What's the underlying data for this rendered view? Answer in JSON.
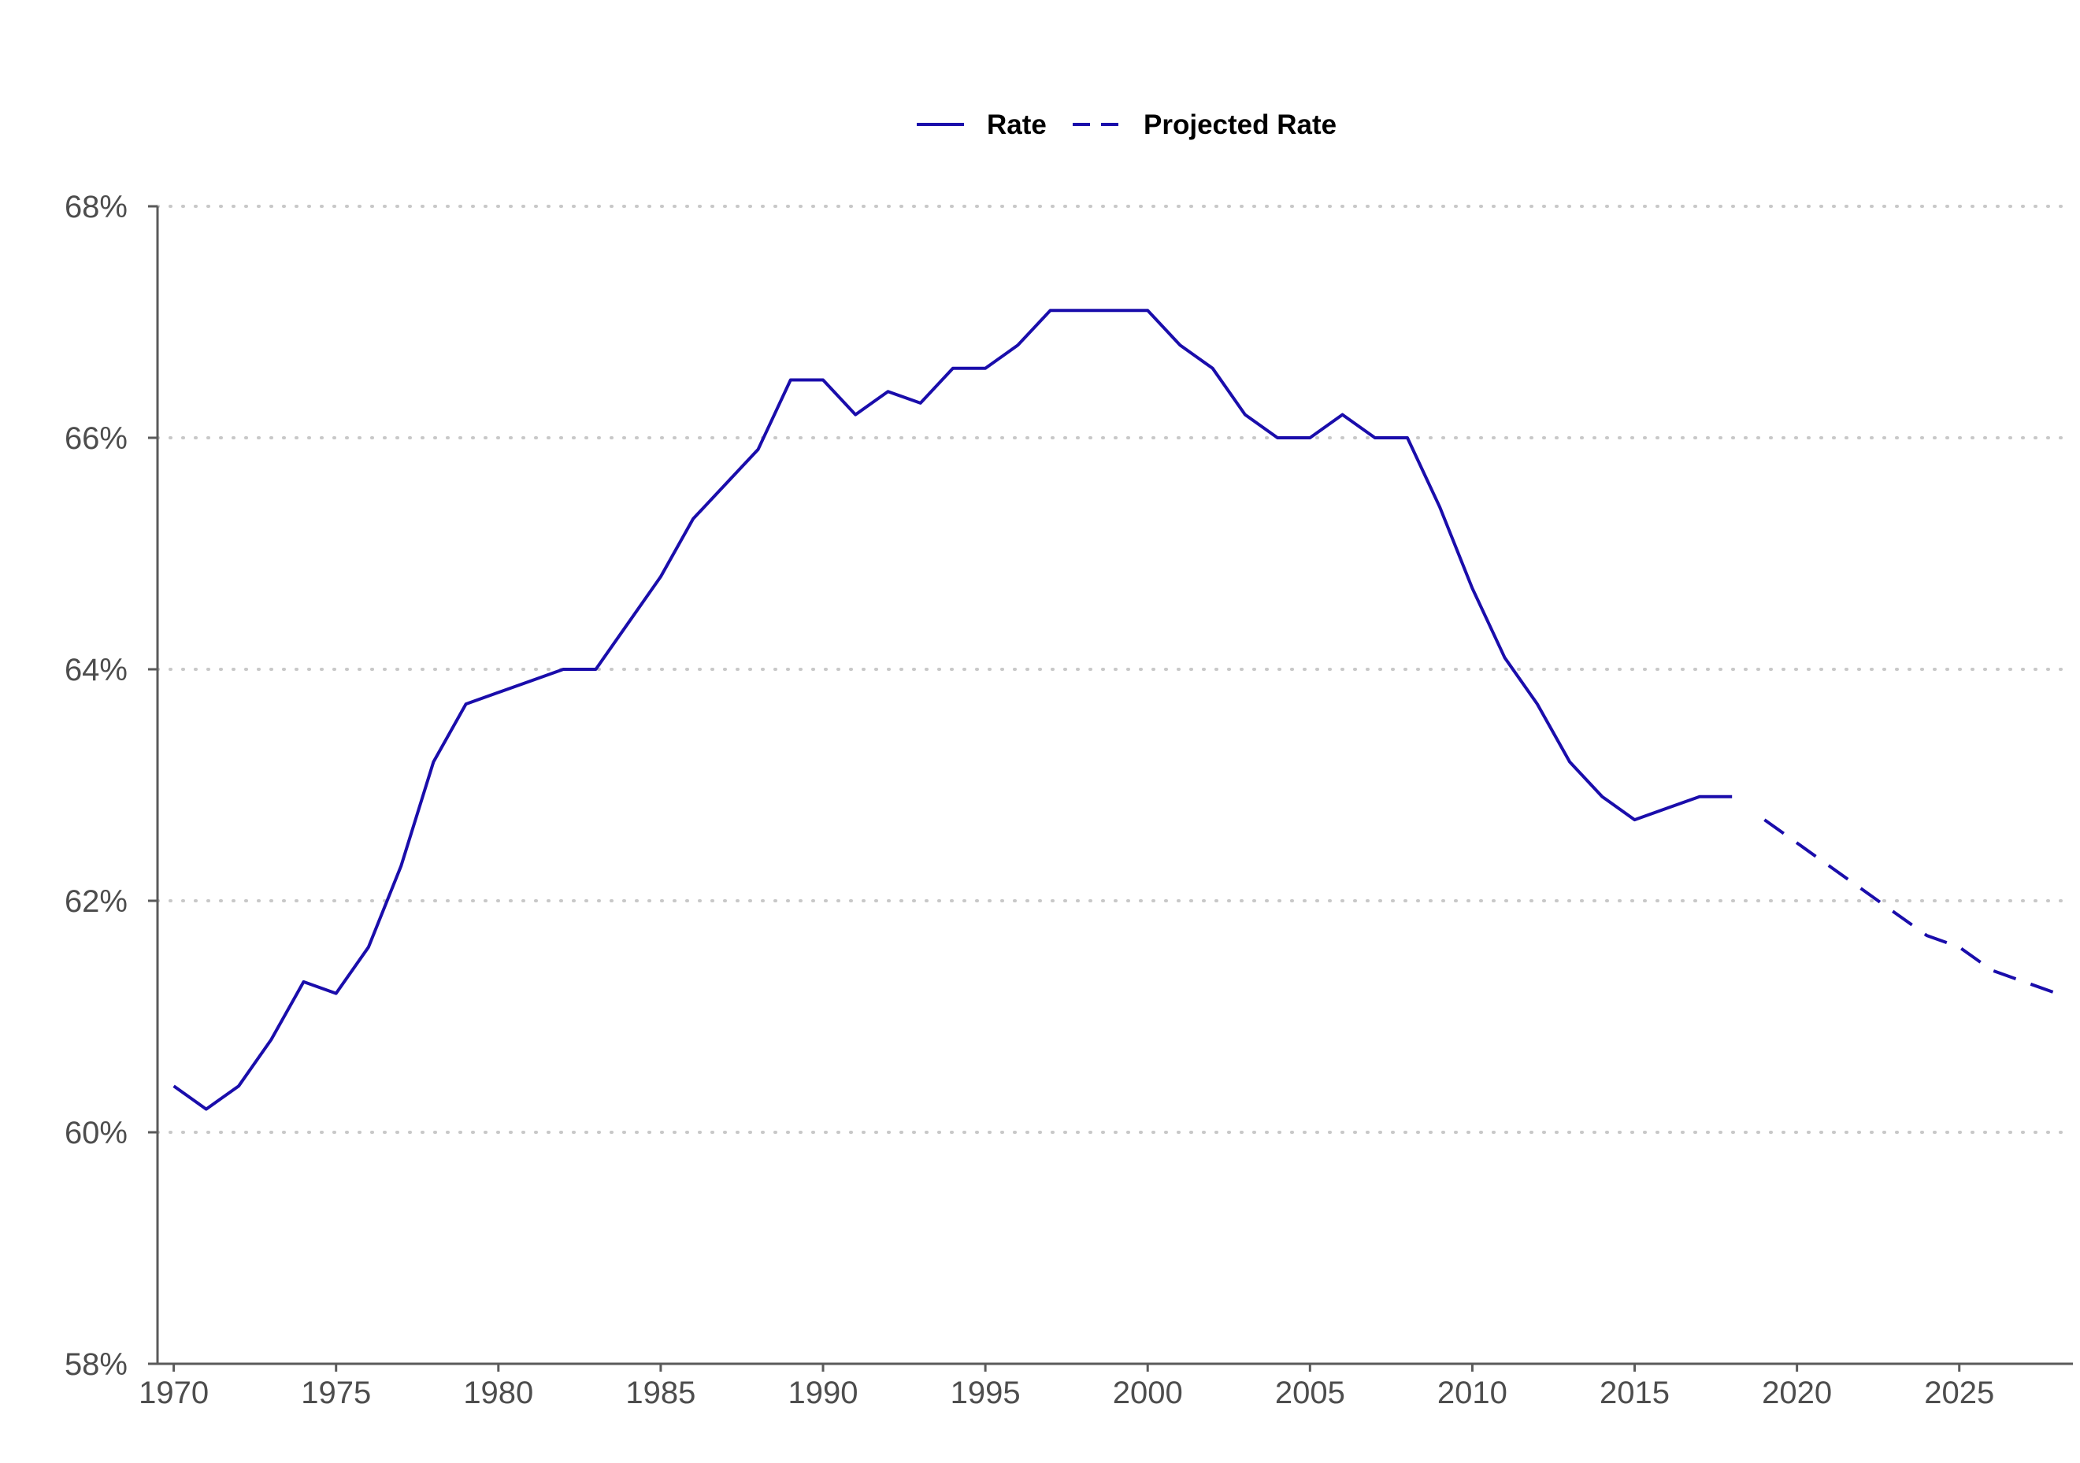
{
  "chart_data": {
    "type": "line",
    "title": "",
    "xlabel": "",
    "ylabel": "",
    "xlim": [
      1969.5,
      2028.5
    ],
    "ylim": [
      58,
      68
    ],
    "grid": "horizontal-dotted",
    "legend_position": "top-center",
    "x_ticks": [
      "1970",
      "1975",
      "1980",
      "1985",
      "1990",
      "1995",
      "2000",
      "2005",
      "2010",
      "2015",
      "2020",
      "2025"
    ],
    "x_tick_values": [
      1970,
      1975,
      1980,
      1985,
      1990,
      1995,
      2000,
      2005,
      2010,
      2015,
      2020,
      2025
    ],
    "y_ticks": [
      "58%",
      "60%",
      "62%",
      "64%",
      "66%",
      "68%"
    ],
    "y_tick_values": [
      58,
      60,
      62,
      64,
      66,
      68
    ],
    "series": [
      {
        "name": "Rate",
        "style": "solid",
        "color": "#1a0dab",
        "x": [
          1970,
          1971,
          1972,
          1973,
          1974,
          1975,
          1976,
          1977,
          1978,
          1979,
          1980,
          1981,
          1982,
          1983,
          1984,
          1985,
          1986,
          1987,
          1988,
          1989,
          1990,
          1991,
          1992,
          1993,
          1994,
          1995,
          1996,
          1997,
          1998,
          1999,
          2000,
          2001,
          2002,
          2003,
          2004,
          2005,
          2006,
          2007,
          2008,
          2009,
          2010,
          2011,
          2012,
          2013,
          2014,
          2015,
          2016,
          2017,
          2018
        ],
        "y": [
          60.4,
          60.2,
          60.4,
          60.8,
          61.3,
          61.2,
          61.6,
          62.3,
          63.2,
          63.7,
          63.8,
          63.9,
          64.0,
          64.0,
          64.4,
          64.8,
          65.3,
          65.6,
          65.9,
          66.5,
          66.5,
          66.2,
          66.4,
          66.3,
          66.6,
          66.6,
          66.8,
          67.1,
          67.1,
          67.1,
          67.1,
          66.8,
          66.6,
          66.2,
          66.0,
          66.0,
          66.2,
          66.0,
          66.0,
          65.4,
          64.7,
          64.1,
          63.7,
          63.2,
          62.9,
          62.7,
          62.8,
          62.9,
          62.9
        ]
      },
      {
        "name": "Projected Rate",
        "style": "dashed",
        "color": "#1a0dab",
        "x": [
          2019,
          2020,
          2021,
          2022,
          2023,
          2024,
          2025,
          2026,
          2027,
          2028
        ],
        "y": [
          62.7,
          62.5,
          62.3,
          62.1,
          61.9,
          61.7,
          61.6,
          61.4,
          61.3,
          61.2
        ]
      }
    ]
  }
}
